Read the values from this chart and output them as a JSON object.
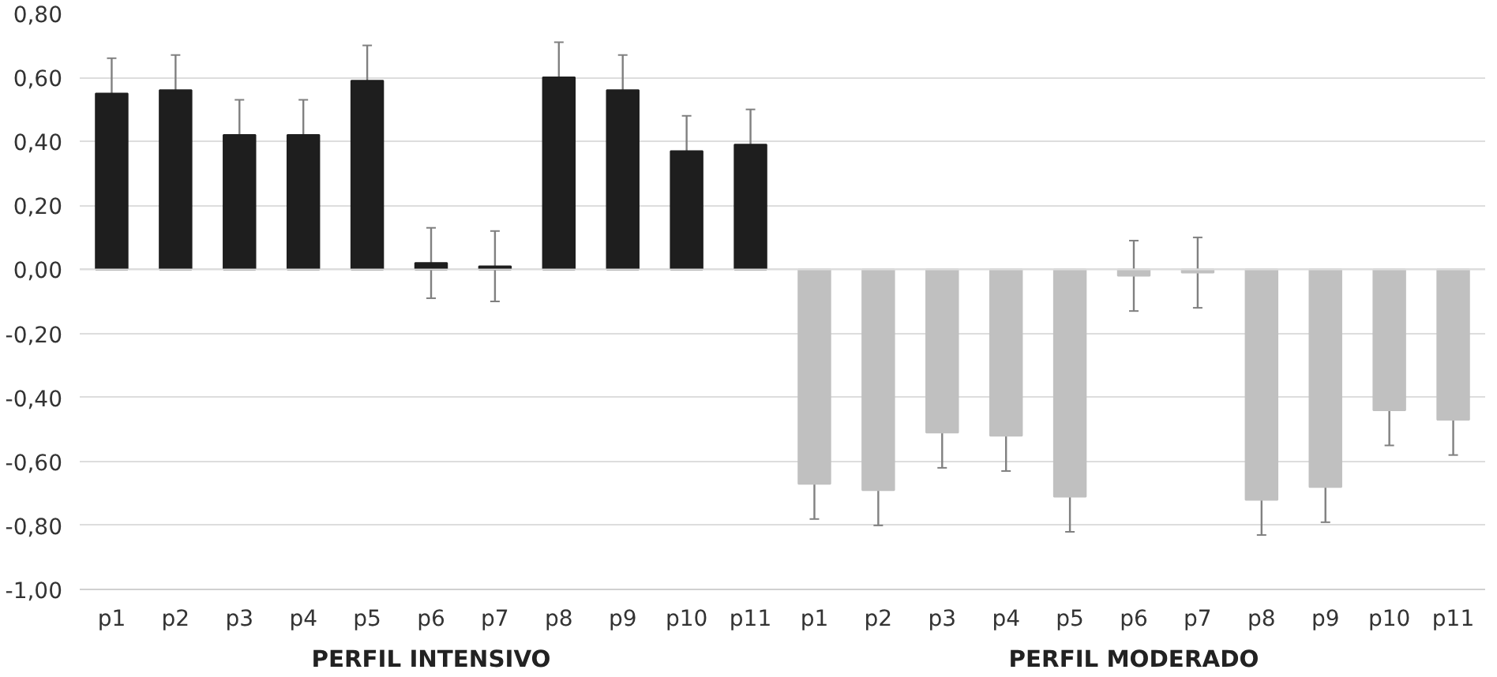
{
  "chart_data": {
    "type": "bar",
    "categories": [
      "p1",
      "p2",
      "p3",
      "p4",
      "p5",
      "p6",
      "p7",
      "p8",
      "p9",
      "p10",
      "p11",
      "p1",
      "p2",
      "p3",
      "p4",
      "p5",
      "p6",
      "p7",
      "p8",
      "p9",
      "p10",
      "p11"
    ],
    "values": [
      0.55,
      0.56,
      0.42,
      0.42,
      0.59,
      0.02,
      0.01,
      0.6,
      0.56,
      0.37,
      0.39,
      -0.67,
      -0.69,
      -0.51,
      -0.52,
      -0.71,
      -0.02,
      -0.01,
      -0.72,
      -0.68,
      -0.44,
      -0.47
    ],
    "errors": [
      0.11,
      0.11,
      0.11,
      0.11,
      0.11,
      0.11,
      0.11,
      0.11,
      0.11,
      0.11,
      0.11,
      0.11,
      0.11,
      0.11,
      0.11,
      0.11,
      0.11,
      0.11,
      0.11,
      0.11,
      0.11,
      0.11
    ],
    "colors": [
      "#1e1e1e",
      "#1e1e1e",
      "#1e1e1e",
      "#1e1e1e",
      "#1e1e1e",
      "#1e1e1e",
      "#1e1e1e",
      "#1e1e1e",
      "#1e1e1e",
      "#1e1e1e",
      "#1e1e1e",
      "#c0c0c0",
      "#c0c0c0",
      "#c0c0c0",
      "#c0c0c0",
      "#c0c0c0",
      "#c0c0c0",
      "#c0c0c0",
      "#c0c0c0",
      "#c0c0c0",
      "#c0c0c0",
      "#c0c0c0"
    ],
    "ylim": [
      -1.0,
      0.8
    ],
    "yticks": [
      {
        "value": -1.0,
        "label": "-1,00"
      },
      {
        "value": -0.8,
        "label": "-0,80"
      },
      {
        "value": -0.6,
        "label": "-0,60"
      },
      {
        "value": -0.4,
        "label": "-0,40"
      },
      {
        "value": -0.2,
        "label": "-0,20"
      },
      {
        "value": 0.0,
        "label": "0,00"
      },
      {
        "value": 0.2,
        "label": "0,20"
      },
      {
        "value": 0.4,
        "label": "0,40"
      },
      {
        "value": 0.6,
        "label": "0,60"
      },
      {
        "value": 0.8,
        "label": "0,80"
      }
    ],
    "grid": "y",
    "annotations": [
      "PERFIL INTENSIVO",
      "PERFIL MODERADO"
    ]
  }
}
